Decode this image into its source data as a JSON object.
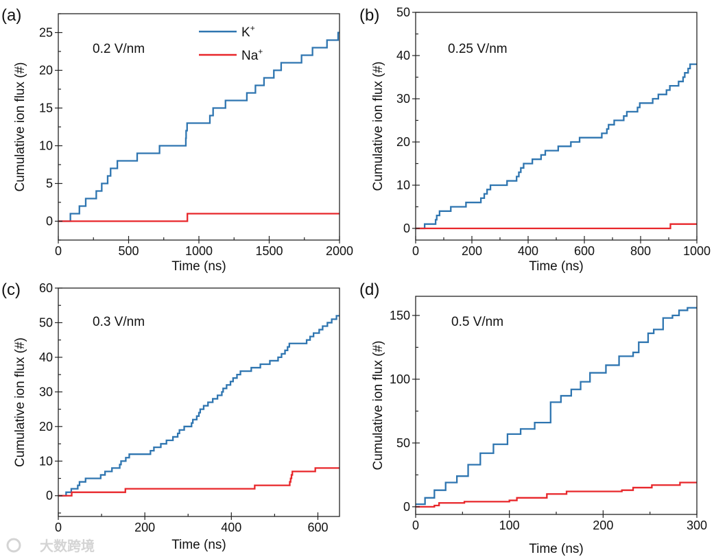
{
  "colors": {
    "K": "#2e75b0",
    "Na": "#e8262a",
    "axis": "#222222"
  },
  "legend": {
    "K_label": "K",
    "K_sup": "+",
    "Na_label": "Na",
    "Na_sup": "+"
  },
  "watermark": "大数跨境",
  "chart_data": [
    {
      "type": "line",
      "panel_label": "(a)",
      "annotation": "0.2 V/nm",
      "xlabel": "Time (ns)",
      "ylabel": "Cumulative ion flux (#)",
      "xlim": [
        0,
        2000
      ],
      "ylim": [
        -2.5,
        27.5
      ],
      "xticks": [
        0,
        500,
        1000,
        1500,
        2000
      ],
      "xminor": 250,
      "yticks": [
        0,
        5,
        10,
        15,
        20,
        25
      ],
      "yminor": 2.5,
      "legend": true,
      "series": [
        {
          "name": "K+",
          "color_key": "K",
          "start": 0,
          "steps": [
            [
              86,
              1
            ],
            [
              150,
              2
            ],
            [
              195,
              3
            ],
            [
              270,
              4
            ],
            [
              309,
              5
            ],
            [
              351,
              6
            ],
            [
              372,
              7
            ],
            [
              420,
              8
            ],
            [
              561,
              9
            ],
            [
              720,
              10
            ],
            [
              907,
              11
            ],
            [
              909,
              12
            ],
            [
              916,
              13
            ],
            [
              1078,
              14
            ],
            [
              1101,
              15
            ],
            [
              1189,
              16
            ],
            [
              1341,
              17
            ],
            [
              1402,
              18
            ],
            [
              1463,
              19
            ],
            [
              1533,
              20
            ],
            [
              1585,
              21
            ],
            [
              1730,
              22
            ],
            [
              1808,
              23
            ],
            [
              1911,
              24
            ],
            [
              1990,
              25
            ]
          ],
          "end": 2000
        },
        {
          "name": "Na+",
          "color_key": "Na",
          "start": 0,
          "steps": [
            [
              918,
              1
            ]
          ],
          "end": 2000
        }
      ]
    },
    {
      "type": "line",
      "panel_label": "(b)",
      "annotation": "0.25 V/nm",
      "xlabel": "Time (ns)",
      "ylabel": "Cumulative ion flux (#)",
      "xlim": [
        0,
        1000
      ],
      "ylim": [
        -2.7,
        50
      ],
      "xticks": [
        0,
        200,
        400,
        600,
        800,
        1000
      ],
      "xminor": 100,
      "yticks": [
        0,
        10,
        20,
        30,
        40,
        50
      ],
      "yminor": 5,
      "legend": false,
      "series": [
        {
          "name": "K+",
          "color_key": "K",
          "start": 0,
          "steps": [
            [
              32,
              1
            ],
            [
              71,
              2
            ],
            [
              75,
              3
            ],
            [
              85,
              4
            ],
            [
              125,
              5
            ],
            [
              179,
              6
            ],
            [
              232,
              7
            ],
            [
              244,
              8
            ],
            [
              254,
              9
            ],
            [
              266,
              10
            ],
            [
              325,
              11
            ],
            [
              359,
              12
            ],
            [
              367,
              13
            ],
            [
              374,
              14
            ],
            [
              384,
              15
            ],
            [
              415,
              16
            ],
            [
              446,
              17
            ],
            [
              461,
              18
            ],
            [
              507,
              19
            ],
            [
              552,
              20
            ],
            [
              583,
              21
            ],
            [
              662,
              22
            ],
            [
              680,
              23
            ],
            [
              686,
              24
            ],
            [
              706,
              25
            ],
            [
              740,
              26
            ],
            [
              751,
              27
            ],
            [
              789,
              28
            ],
            [
              797,
              29
            ],
            [
              843,
              30
            ],
            [
              863,
              31
            ],
            [
              892,
              32
            ],
            [
              904,
              33
            ],
            [
              935,
              34
            ],
            [
              951,
              35
            ],
            [
              957,
              36
            ],
            [
              969,
              37
            ],
            [
              976,
              38
            ]
          ],
          "end": 1000
        },
        {
          "name": "Na+",
          "color_key": "Na",
          "start": 0,
          "steps": [
            [
              906,
              1
            ]
          ],
          "end": 1000
        }
      ]
    },
    {
      "type": "line",
      "panel_label": "(c)",
      "annotation": "0.3 V/nm",
      "xlabel": "Time (ns)",
      "ylabel": "Cumulative ion flux (#)",
      "xlim": [
        0,
        650
      ],
      "ylim": [
        -6,
        60
      ],
      "xticks": [
        0,
        200,
        400,
        600
      ],
      "xminor": 100,
      "yticks": [
        0,
        10,
        20,
        30,
        40,
        50,
        60
      ],
      "yminor": 5,
      "legend": false,
      "series": [
        {
          "name": "K+",
          "color_key": "K",
          "start": 0,
          "steps": [
            [
              18,
              1
            ],
            [
              30,
              2
            ],
            [
              45,
              3
            ],
            [
              49,
              4
            ],
            [
              63,
              5
            ],
            [
              98,
              6
            ],
            [
              108,
              7
            ],
            [
              124,
              8
            ],
            [
              142,
              9
            ],
            [
              145,
              10
            ],
            [
              156,
              11
            ],
            [
              164,
              12
            ],
            [
              213,
              13
            ],
            [
              221,
              14
            ],
            [
              237,
              15
            ],
            [
              250,
              16
            ],
            [
              265,
              17
            ],
            [
              276,
              18
            ],
            [
              280,
              19
            ],
            [
              291,
              20
            ],
            [
              308,
              21
            ],
            [
              311,
              22
            ],
            [
              320,
              23
            ],
            [
              325,
              24
            ],
            [
              328,
              25
            ],
            [
              336,
              26
            ],
            [
              346,
              27
            ],
            [
              357,
              28
            ],
            [
              368,
              29
            ],
            [
              378,
              30
            ],
            [
              381,
              31
            ],
            [
              389,
              32
            ],
            [
              398,
              33
            ],
            [
              404,
              34
            ],
            [
              413,
              35
            ],
            [
              421,
              36
            ],
            [
              446,
              37
            ],
            [
              467,
              38
            ],
            [
              489,
              39
            ],
            [
              508,
              40
            ],
            [
              516,
              41
            ],
            [
              524,
              42
            ],
            [
              530,
              43
            ],
            [
              534,
              44
            ],
            [
              574,
              45
            ],
            [
              582,
              46
            ],
            [
              590,
              47
            ],
            [
              603,
              48
            ],
            [
              611,
              49
            ],
            [
              622,
              50
            ],
            [
              632,
              51
            ],
            [
              643,
              52
            ]
          ],
          "end": 650
        },
        {
          "name": "Na+",
          "color_key": "Na",
          "start": 0,
          "steps": [
            [
              31,
              1
            ],
            [
              155,
              2
            ],
            [
              454,
              3
            ],
            [
              535,
              4
            ],
            [
              537,
              5
            ],
            [
              539,
              6
            ],
            [
              541,
              7
            ],
            [
              594,
              8
            ]
          ],
          "end": 650
        }
      ]
    },
    {
      "type": "line",
      "panel_label": "(d)",
      "annotation": "0.5 V/nm",
      "xlabel": "Time (ns)",
      "ylabel": "Cumulative ion flux (#)",
      "xlim": [
        0,
        300
      ],
      "ylim": [
        -6,
        165
      ],
      "xticks": [
        0,
        100,
        200,
        300
      ],
      "xminor": 50,
      "yticks": [
        0,
        50,
        100,
        150
      ],
      "yminor": 25,
      "legend": false,
      "series": [
        {
          "name": "K+",
          "color_key": "K",
          "start": 2,
          "steps": [
            [
              10,
              7
            ],
            [
              20,
              13
            ],
            [
              32,
              19
            ],
            [
              44,
              24
            ],
            [
              56,
              33
            ],
            [
              69,
              42
            ],
            [
              83,
              49
            ],
            [
              98,
              57
            ],
            [
              112,
              61
            ],
            [
              127,
              66
            ],
            [
              144,
              82
            ],
            [
              155,
              87
            ],
            [
              166,
              92
            ],
            [
              176,
              98
            ],
            [
              186,
              105
            ],
            [
              198,
              105
            ],
            [
              203,
              111
            ],
            [
              210,
              111
            ],
            [
              217,
              118
            ],
            [
              232,
              121
            ],
            [
              238,
              129
            ],
            [
              248,
              136
            ],
            [
              254,
              139
            ],
            [
              264,
              148
            ],
            [
              274,
              150
            ],
            [
              281,
              154
            ],
            [
              290,
              156
            ]
          ],
          "end": 300
        },
        {
          "name": "Na+",
          "color_key": "Na",
          "start": 0,
          "steps": [
            [
              20,
              1
            ],
            [
              25,
              3
            ],
            [
              52,
              4
            ],
            [
              100,
              5
            ],
            [
              108,
              7
            ],
            [
              140,
              10
            ],
            [
              161,
              12
            ],
            [
              220,
              13
            ],
            [
              232,
              15
            ],
            [
              252,
              17
            ],
            [
              282,
              19
            ]
          ],
          "end": 300
        }
      ]
    }
  ]
}
